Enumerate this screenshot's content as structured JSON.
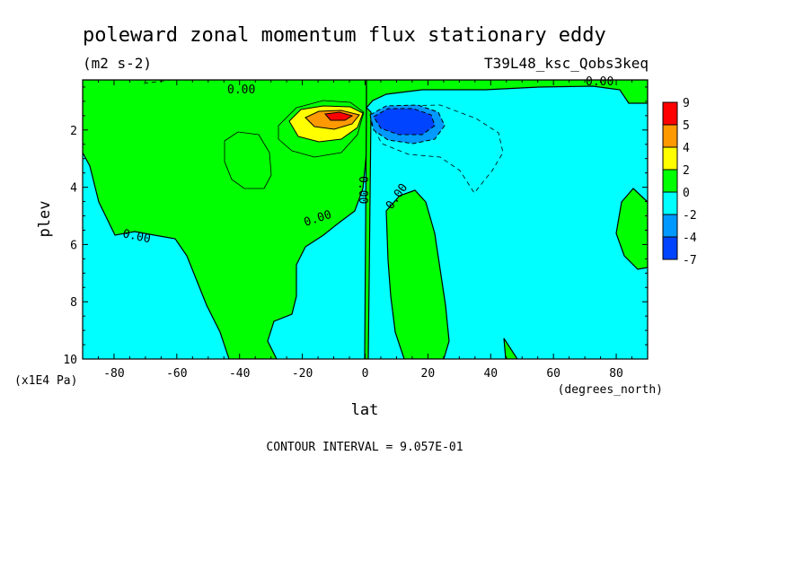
{
  "chart_data": {
    "type": "heatmap",
    "title": "poleward zonal momentum flux stationary eddy",
    "units": "(m2 s-2)",
    "run_label": "T39L48_ksc_Qobs3keq",
    "xlabel": "lat",
    "x_units": "(degrees_north)",
    "ylabel": "plev",
    "y_units": "(x1E4 Pa)",
    "xlim": [
      -90,
      90
    ],
    "ylim": [
      10,
      0.25
    ],
    "x_ticks": [
      -80,
      -60,
      -40,
      -20,
      0,
      20,
      40,
      60,
      80
    ],
    "x_tick_labels": [
      "-80",
      "-60",
      "-40",
      "-20",
      "0",
      "20",
      "40",
      "60",
      "80"
    ],
    "y_ticks": [
      2,
      4,
      6,
      8,
      10
    ],
    "y_tick_labels": [
      "2",
      "4",
      "6",
      "8",
      "10"
    ],
    "contour_interval_text": "CONTOUR INTERVAL = 9.057E-01",
    "contour_labels": [
      "0.00",
      "0.00",
      "0.00",
      "0.00",
      "0.00",
      "0.00"
    ],
    "colorbar": {
      "levels": [
        "9",
        "5",
        "4",
        "2",
        "0",
        "-2",
        "-4",
        "-7"
      ],
      "colors": [
        "#ff0000",
        "#ff9900",
        "#ffff00",
        "#00ff00",
        "#00ffff",
        "#0099ff",
        "#0044ff"
      ]
    },
    "features": [
      {
        "name": "positive maximum",
        "lat": -7,
        "plev": 1.3,
        "value_range": "5 to 9"
      },
      {
        "name": "negative minimum",
        "lat": 12,
        "plev": 1.4,
        "value_range": "-7 to -4"
      }
    ],
    "grid": false,
    "legend": "colorbar right"
  }
}
